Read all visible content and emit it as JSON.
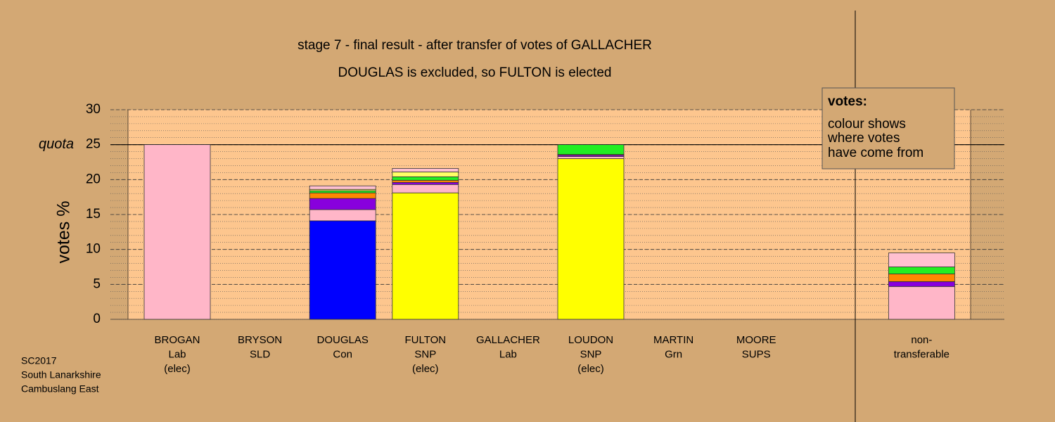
{
  "chart_data": {
    "type": "bar",
    "stacked": true,
    "title": "stage 7 - final result - after transfer of votes of GALLACHER",
    "subtitle": "DOUGLAS is excluded, so FULTON is elected",
    "y_label": "votes %",
    "quota": {
      "value": 25,
      "label": "quota"
    },
    "categories": [
      [
        "BROGAN",
        "Lab",
        "(elec)"
      ],
      [
        "BRYSON",
        "SLD"
      ],
      [
        "DOUGLAS",
        "Con"
      ],
      [
        "FULTON",
        "SNP",
        "(elec)"
      ],
      [
        "GALLACHER",
        "Lab"
      ],
      [
        "LOUDON",
        "SNP",
        "(elec)"
      ],
      [
        "MARTIN",
        "Grn"
      ],
      [
        "MOORE",
        "SUPS"
      ],
      null,
      [
        "non-",
        "transferable"
      ]
    ],
    "series": [
      {
        "color": "#0000ff",
        "values": [
          0,
          0,
          14.1,
          0,
          0,
          0,
          0,
          0,
          null,
          0
        ]
      },
      {
        "color": "#ffff00",
        "values": [
          0,
          0,
          0,
          18.1,
          0,
          23.0,
          0,
          0,
          null,
          0
        ]
      },
      {
        "color": "#ffb6c8",
        "values": [
          25,
          0,
          1.6,
          1.2,
          0,
          0.3,
          0,
          0,
          null,
          4.7
        ]
      },
      {
        "color": "#8800dd",
        "values": [
          0,
          0,
          1.6,
          0.3,
          0,
          0.2,
          0,
          0,
          null,
          0.7
        ]
      },
      {
        "color": "#ff8800",
        "values": [
          0,
          0,
          0.8,
          0.3,
          0,
          0.1,
          0,
          0,
          null,
          1.1
        ]
      },
      {
        "color": "#22ee22",
        "values": [
          0,
          0,
          0.3,
          0.5,
          0,
          1.4,
          0,
          0,
          null,
          1.0
        ]
      },
      {
        "color": "#ffff66",
        "values": [
          0,
          0,
          0.2,
          0.7,
          0,
          0,
          0,
          0,
          null,
          0
        ]
      },
      {
        "color": "#ffc0d0",
        "values": [
          0,
          0,
          0.5,
          0.5,
          0,
          0,
          0,
          0,
          null,
          2.0
        ]
      }
    ],
    "ylim": [
      0,
      30
    ],
    "yticks": [
      0,
      5,
      10,
      15,
      20,
      25,
      30
    ],
    "minor_grid_step": 1,
    "grid": true,
    "legend": {
      "title": "votes:",
      "lines": [
        "colour shows",
        "where votes",
        "have come from"
      ]
    },
    "footer": [
      "SC2017",
      "South Lanarkshire",
      "Cambuslang East"
    ]
  }
}
